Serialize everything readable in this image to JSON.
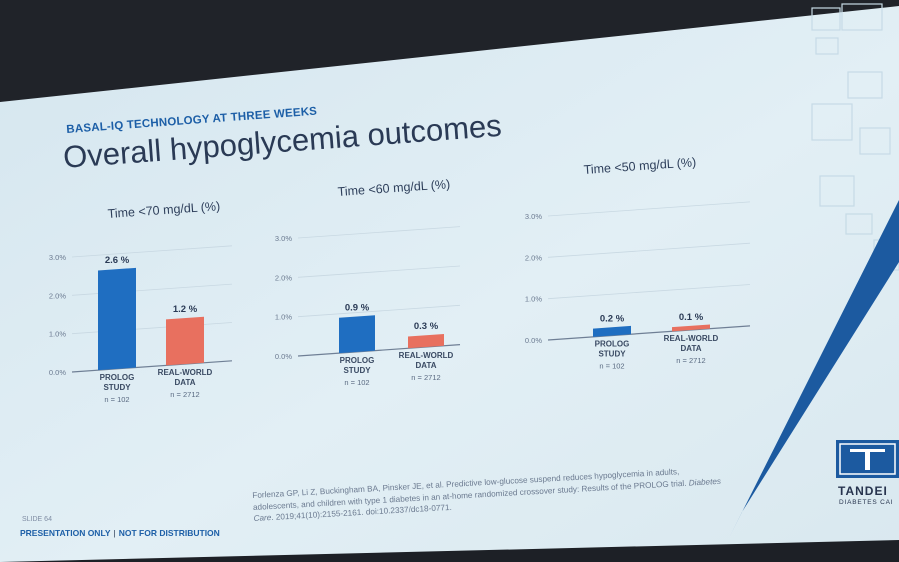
{
  "slide": {
    "eyebrow": "BASAL-IQ TECHNOLOGY AT THREE WEEKS",
    "title": "Overall hypoglycemia outcomes",
    "citation_pre": "Forlenza GP, Li Z, Buckingham BA, Pinsker JE, et al. Predictive low-glucose suspend reduces hypoglycemia in adults, adolescents, and children with type 1 diabetes in an at-home randomized crossover study: Results of the PROLOG trial. ",
    "citation_journal": "Diabetes Care",
    "citation_post": ". 2019;41(10):2155-2161. doi:10.2337/dc18-0771.",
    "slide_number": "SLIDE 64",
    "footer_left": "PRESENTATION ONLY",
    "footer_sep": "|",
    "footer_right": "NOT FOR DISTRIBUTION",
    "brand_name": "TANDEI",
    "brand_sub": "DIABETES CAI"
  },
  "colors": {
    "background": "#dcebf2",
    "prolog": "#1f6ec1",
    "real_world": "#e8705f",
    "accent_blue": "#1c5aa0",
    "title_text": "#2a3a55"
  },
  "chart_data": [
    {
      "type": "bar",
      "title": "Time <70 mg/dL (%)",
      "categories": [
        "PROLOG\nSTUDY",
        "REAL-WORLD\nDATA"
      ],
      "n_labels": [
        "n = 102",
        "n = 2712"
      ],
      "values": [
        2.6,
        1.2
      ],
      "value_labels": [
        "2.6 %",
        "1.2 %"
      ],
      "yticks": [
        "0.0%",
        "1.0%",
        "2.0%",
        "3.0%"
      ],
      "ylim": [
        0,
        3.0
      ],
      "grid": true
    },
    {
      "type": "bar",
      "title": "Time <60 mg/dL (%)",
      "categories": [
        "PROLOG\nSTUDY",
        "REAL-WORLD\nDATA"
      ],
      "n_labels": [
        "n = 102",
        "n = 2712"
      ],
      "values": [
        0.9,
        0.3
      ],
      "value_labels": [
        "0.9 %",
        "0.3 %"
      ],
      "yticks": [
        "0.0%",
        "1.0%",
        "2.0%",
        "3.0%"
      ],
      "ylim": [
        0,
        3.0
      ],
      "grid": true
    },
    {
      "type": "bar",
      "title": "Time <50 mg/dL (%)",
      "categories": [
        "PROLOG\nSTUDY",
        "REAL-WORLD\nDATA"
      ],
      "n_labels": [
        "n = 102",
        "n = 2712"
      ],
      "values": [
        0.2,
        0.1
      ],
      "value_labels": [
        "0.2 %",
        "0.1 %"
      ],
      "yticks": [
        "0.0%",
        "1.0%",
        "2.0%",
        "3.0%"
      ],
      "ylim": [
        0,
        3.0
      ],
      "grid": true
    }
  ]
}
